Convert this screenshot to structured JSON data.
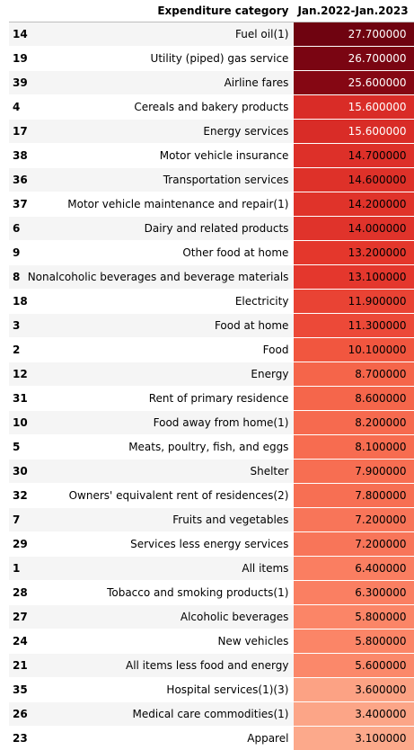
{
  "table": {
    "index_header": "",
    "category_header": "Expenditure category",
    "value_header": "Jan.2022-Jan.2023"
  },
  "chart_data": {
    "type": "table",
    "colormap": "Reds",
    "color_domain": [
      3.1,
      27.7
    ],
    "colors": {
      "low": "#fca98b",
      "high": "#6f0310",
      "dark_text": "#ffffff",
      "light_text": "#000000",
      "stripe": "#f5f5f5"
    },
    "columns": [
      "",
      "Expenditure category",
      "Jan.2022-Jan.2023"
    ],
    "rows": [
      {
        "index": "14",
        "category": "Fuel oil(1)",
        "value": 27.7,
        "display": "27.700000"
      },
      {
        "index": "19",
        "category": "Utility (piped) gas service",
        "value": 26.7,
        "display": "26.700000"
      },
      {
        "index": "39",
        "category": "Airline fares",
        "value": 25.6,
        "display": "25.600000"
      },
      {
        "index": "4",
        "category": "Cereals and bakery products",
        "value": 15.6,
        "display": "15.600000"
      },
      {
        "index": "17",
        "category": "Energy services",
        "value": 15.6,
        "display": "15.600000"
      },
      {
        "index": "38",
        "category": "Motor vehicle insurance",
        "value": 14.7,
        "display": "14.700000"
      },
      {
        "index": "36",
        "category": "Transportation services",
        "value": 14.6,
        "display": "14.600000"
      },
      {
        "index": "37",
        "category": "Motor vehicle maintenance and repair(1)",
        "value": 14.2,
        "display": "14.200000"
      },
      {
        "index": "6",
        "category": "Dairy and related products",
        "value": 14.0,
        "display": "14.000000"
      },
      {
        "index": "9",
        "category": "Other food at home",
        "value": 13.2,
        "display": "13.200000"
      },
      {
        "index": "8",
        "category": "Nonalcoholic beverages and beverage materials",
        "value": 13.1,
        "display": "13.100000"
      },
      {
        "index": "18",
        "category": "Electricity",
        "value": 11.9,
        "display": "11.900000"
      },
      {
        "index": "3",
        "category": "Food at home",
        "value": 11.3,
        "display": "11.300000"
      },
      {
        "index": "2",
        "category": "Food",
        "value": 10.1,
        "display": "10.100000"
      },
      {
        "index": "12",
        "category": "Energy",
        "value": 8.7,
        "display": "8.700000"
      },
      {
        "index": "31",
        "category": "Rent of primary residence",
        "value": 8.6,
        "display": "8.600000"
      },
      {
        "index": "10",
        "category": "Food away from home(1)",
        "value": 8.2,
        "display": "8.200000"
      },
      {
        "index": "5",
        "category": "Meats, poultry, fish, and eggs",
        "value": 8.1,
        "display": "8.100000"
      },
      {
        "index": "30",
        "category": "Shelter",
        "value": 7.9,
        "display": "7.900000"
      },
      {
        "index": "32",
        "category": "Owners' equivalent rent of residences(2)",
        "value": 7.8,
        "display": "7.800000"
      },
      {
        "index": "7",
        "category": "Fruits and vegetables",
        "value": 7.2,
        "display": "7.200000"
      },
      {
        "index": "29",
        "category": "Services less energy services",
        "value": 7.2,
        "display": "7.200000"
      },
      {
        "index": "1",
        "category": "All items",
        "value": 6.4,
        "display": "6.400000"
      },
      {
        "index": "28",
        "category": "Tobacco and smoking products(1)",
        "value": 6.3,
        "display": "6.300000"
      },
      {
        "index": "27",
        "category": "Alcoholic beverages",
        "value": 5.8,
        "display": "5.800000"
      },
      {
        "index": "24",
        "category": "New vehicles",
        "value": 5.8,
        "display": "5.800000"
      },
      {
        "index": "21",
        "category": "All items less food and energy",
        "value": 5.6,
        "display": "5.600000"
      },
      {
        "index": "35",
        "category": "Hospital services(1)(3)",
        "value": 3.6,
        "display": "3.600000"
      },
      {
        "index": "26",
        "category": "Medical care commodities(1)",
        "value": 3.4,
        "display": "3.400000"
      },
      {
        "index": "23",
        "category": "Apparel",
        "value": 3.1,
        "display": "3.100000"
      }
    ]
  }
}
